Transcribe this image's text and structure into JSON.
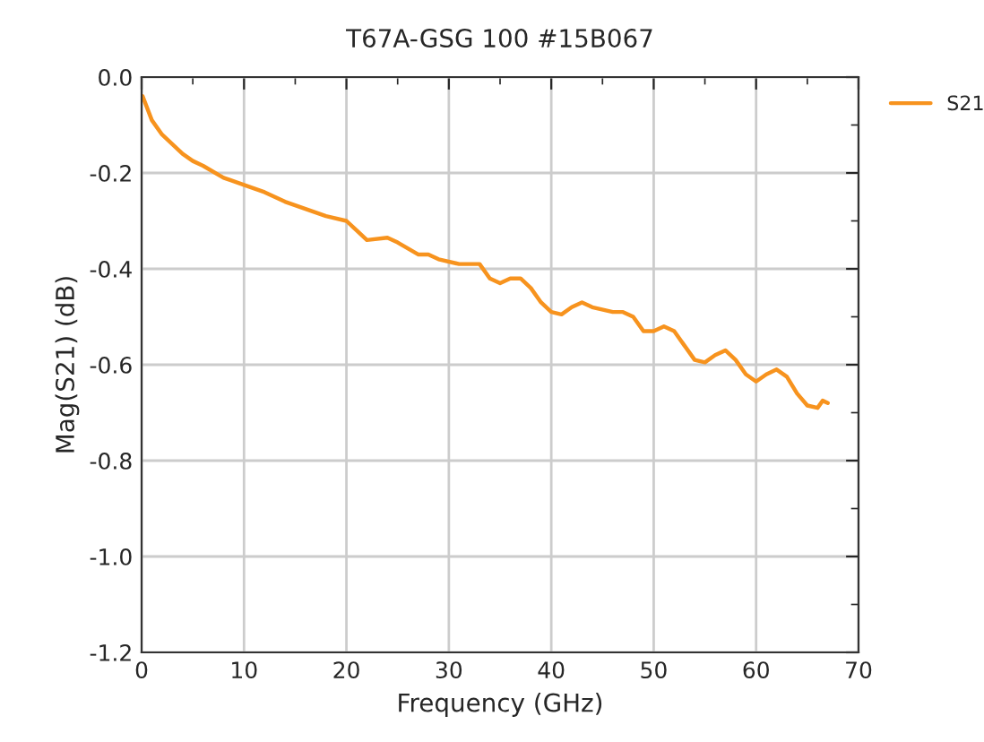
{
  "chart_data": {
    "type": "line",
    "title": "T67A-GSG 100 #15B067",
    "xlabel": "Frequency (GHz)",
    "ylabel": "Mag(S21) (dB)",
    "series": [
      {
        "name": "S21",
        "color": "#f7931e",
        "x": [
          0.1,
          1,
          2,
          3,
          4,
          5,
          6,
          8,
          10,
          12,
          14,
          16,
          18,
          20,
          21,
          22,
          24,
          25,
          27,
          28,
          29,
          31,
          33,
          34,
          35,
          36,
          37,
          38,
          39,
          40,
          41,
          42,
          43,
          44,
          46,
          47,
          48,
          49,
          50,
          51,
          52,
          53,
          54,
          55,
          56,
          57,
          58,
          59,
          60,
          61,
          62,
          63,
          64,
          65,
          66,
          66.5,
          67
        ],
        "values": [
          -0.04,
          -0.09,
          -0.12,
          -0.14,
          -0.16,
          -0.175,
          -0.185,
          -0.21,
          -0.225,
          -0.24,
          -0.26,
          -0.275,
          -0.29,
          -0.3,
          -0.32,
          -0.34,
          -0.335,
          -0.345,
          -0.37,
          -0.37,
          -0.38,
          -0.39,
          -0.39,
          -0.42,
          -0.43,
          -0.42,
          -0.42,
          -0.44,
          -0.47,
          -0.49,
          -0.495,
          -0.48,
          -0.47,
          -0.48,
          -0.49,
          -0.49,
          -0.5,
          -0.53,
          -0.53,
          -0.52,
          -0.53,
          -0.56,
          -0.59,
          -0.595,
          -0.58,
          -0.57,
          -0.59,
          -0.62,
          -0.635,
          -0.62,
          -0.61,
          -0.625,
          -0.66,
          -0.685,
          -0.69,
          -0.675,
          -0.68
        ]
      }
    ],
    "xlim": [
      0,
      70
    ],
    "xticks": [
      0,
      10,
      20,
      30,
      40,
      50,
      60,
      70
    ],
    "ylim": [
      -1.2,
      0
    ],
    "yticks": [
      {
        "value": -1.2,
        "label": "-1.2"
      },
      {
        "value": -1.0,
        "label": "-1.0"
      },
      {
        "value": -0.8,
        "label": "-0.8"
      },
      {
        "value": -0.6,
        "label": "-0.6"
      },
      {
        "value": -0.4,
        "label": "-0.4"
      },
      {
        "value": -0.2,
        "label": "-0.2"
      },
      {
        "value": 0.0,
        "label": "0.0"
      }
    ],
    "grid": true,
    "legend": "top right",
    "marker": "none",
    "line_style": "solid"
  }
}
